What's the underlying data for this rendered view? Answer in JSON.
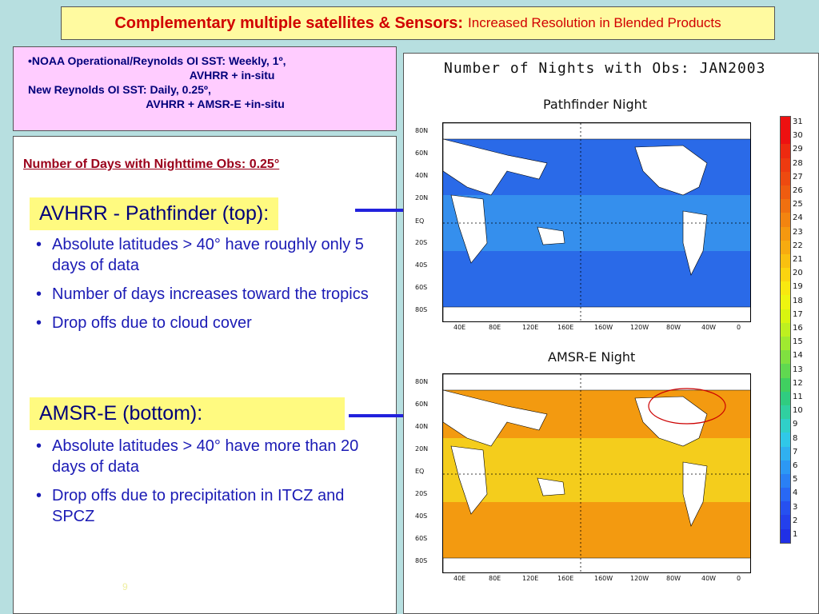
{
  "title": {
    "bold": "Complementary multiple satellites & Sensors:",
    "rest": "Increased Resolution in Blended Products"
  },
  "info": {
    "line1": "•NOAA Operational/Reynolds OI SST: Weekly, 1º,",
    "line2": "                                                    AVHRR + in-situ",
    "line3": "New Reynolds OI SST: Daily, 0.25º,",
    "line4": "                                      AVHRR + AMSR-E +in-situ"
  },
  "panel": {
    "subhead": "Number of Days with Nighttime Obs: 0.25°",
    "section1_heading": "AVHRR - Pathfinder (top):",
    "section1_bullets": [
      "Absolute latitudes > 40° have roughly only 5 days of data",
      "Number of days increases toward the tropics",
      "Drop offs due to cloud cover"
    ],
    "section2_heading": "AMSR-E (bottom):",
    "section2_bullets": [
      "Absolute latitudes > 40° have more than 20 days of data",
      "Drop offs due to precipitation in ITCZ and SPCZ"
    ],
    "page_number": "9"
  },
  "figure": {
    "title": "Number of Nights with Obs: JAN2003",
    "top_map_title": "Pathfinder Night",
    "bottom_map_title": "AMSR-E Night",
    "lat_labels": [
      "80N",
      "60N",
      "40N",
      "20N",
      "EQ",
      "20S",
      "40S",
      "60S",
      "80S"
    ],
    "lon_labels": [
      "40E",
      "80E",
      "120E",
      "160E",
      "160W",
      "120W",
      "80W",
      "40W",
      "0"
    ],
    "colorbar_labels": [
      "31",
      "30",
      "29",
      "28",
      "27",
      "26",
      "25",
      "24",
      "23",
      "22",
      "21",
      "20",
      "19",
      "18",
      "17",
      "16",
      "15",
      "14",
      "13",
      "12",
      "11",
      "10",
      "9",
      "8",
      "7",
      "6",
      "5",
      "4",
      "3",
      "2",
      "1"
    ],
    "colorbar_colors": [
      "#ee1111",
      "#ee1111",
      "#ee2a10",
      "#ee3a10",
      "#ee4a10",
      "#ef5c10",
      "#f07010",
      "#f38410",
      "#f59810",
      "#f7ab10",
      "#f9c010",
      "#fbd410",
      "#f8e810",
      "#eef510",
      "#d8f510",
      "#bef020",
      "#a0ea30",
      "#80e040",
      "#60d850",
      "#40d060",
      "#30cc80",
      "#30d0a0",
      "#30d0c8",
      "#30c8e8",
      "#30b0f0",
      "#2c98f4",
      "#2a80f4",
      "#2868f4",
      "#2650f0",
      "#2440ec",
      "#2030e6"
    ],
    "top_colors": {
      "ocean": "#2a6ae8",
      "land": "#ffffff",
      "tropics": "#3aa0f0"
    },
    "bottom_colors": {
      "ocean": "#f39a10",
      "land": "#ffffff",
      "tropics": "#f4dd20"
    }
  }
}
